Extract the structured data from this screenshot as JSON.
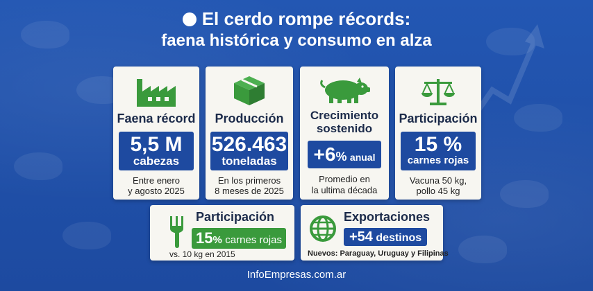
{
  "title": {
    "line1": "El cerdo rompe récords:",
    "line2": "faena histórica y consumo en alza"
  },
  "cards": [
    {
      "icon": "factory-icon",
      "heading": "Faena récord",
      "value": "5,5 M",
      "unit": "cabezas",
      "note_line1": "Entre enero",
      "note_line2": "y agosto 2025"
    },
    {
      "icon": "box-icon",
      "heading": "Producción",
      "value": "526.463",
      "unit": "toneladas",
      "note_line1": "En los primeros",
      "note_line2": "8 meses de 2025"
    },
    {
      "icon": "pig-icon",
      "heading_line1": "Crecimiento",
      "heading_line2": "sostenido",
      "value": "+6",
      "value_suffix": "%",
      "unit": "anual",
      "note_line1": "Promedio en",
      "note_line2": "la ultima década"
    },
    {
      "icon": "scale-icon",
      "heading": "Participación",
      "value": "15 %",
      "unit": "carnes rojas",
      "note_line1": "Vacuna 50 kg,",
      "note_line2": "pollo 45 kg"
    }
  ],
  "bottom_cards": [
    {
      "icon": "fork-icon",
      "heading": "Participación",
      "value": "15",
      "value_suffix": "%",
      "unit": "carnes rojas",
      "note": "vs. 10 kg en 2015"
    },
    {
      "icon": "globe-icon",
      "heading": "Exportaciones",
      "value": "+54",
      "unit": "destinos",
      "note": "Nuevos: Paraguay, Uruguay y Filipinas"
    }
  ],
  "footer": "InfoEmpresas.com.ar",
  "colors": {
    "background": "#1f4fa8",
    "card": "#f7f6f1",
    "value_box": "#1e4aa0",
    "green": "#3a9a3c"
  }
}
